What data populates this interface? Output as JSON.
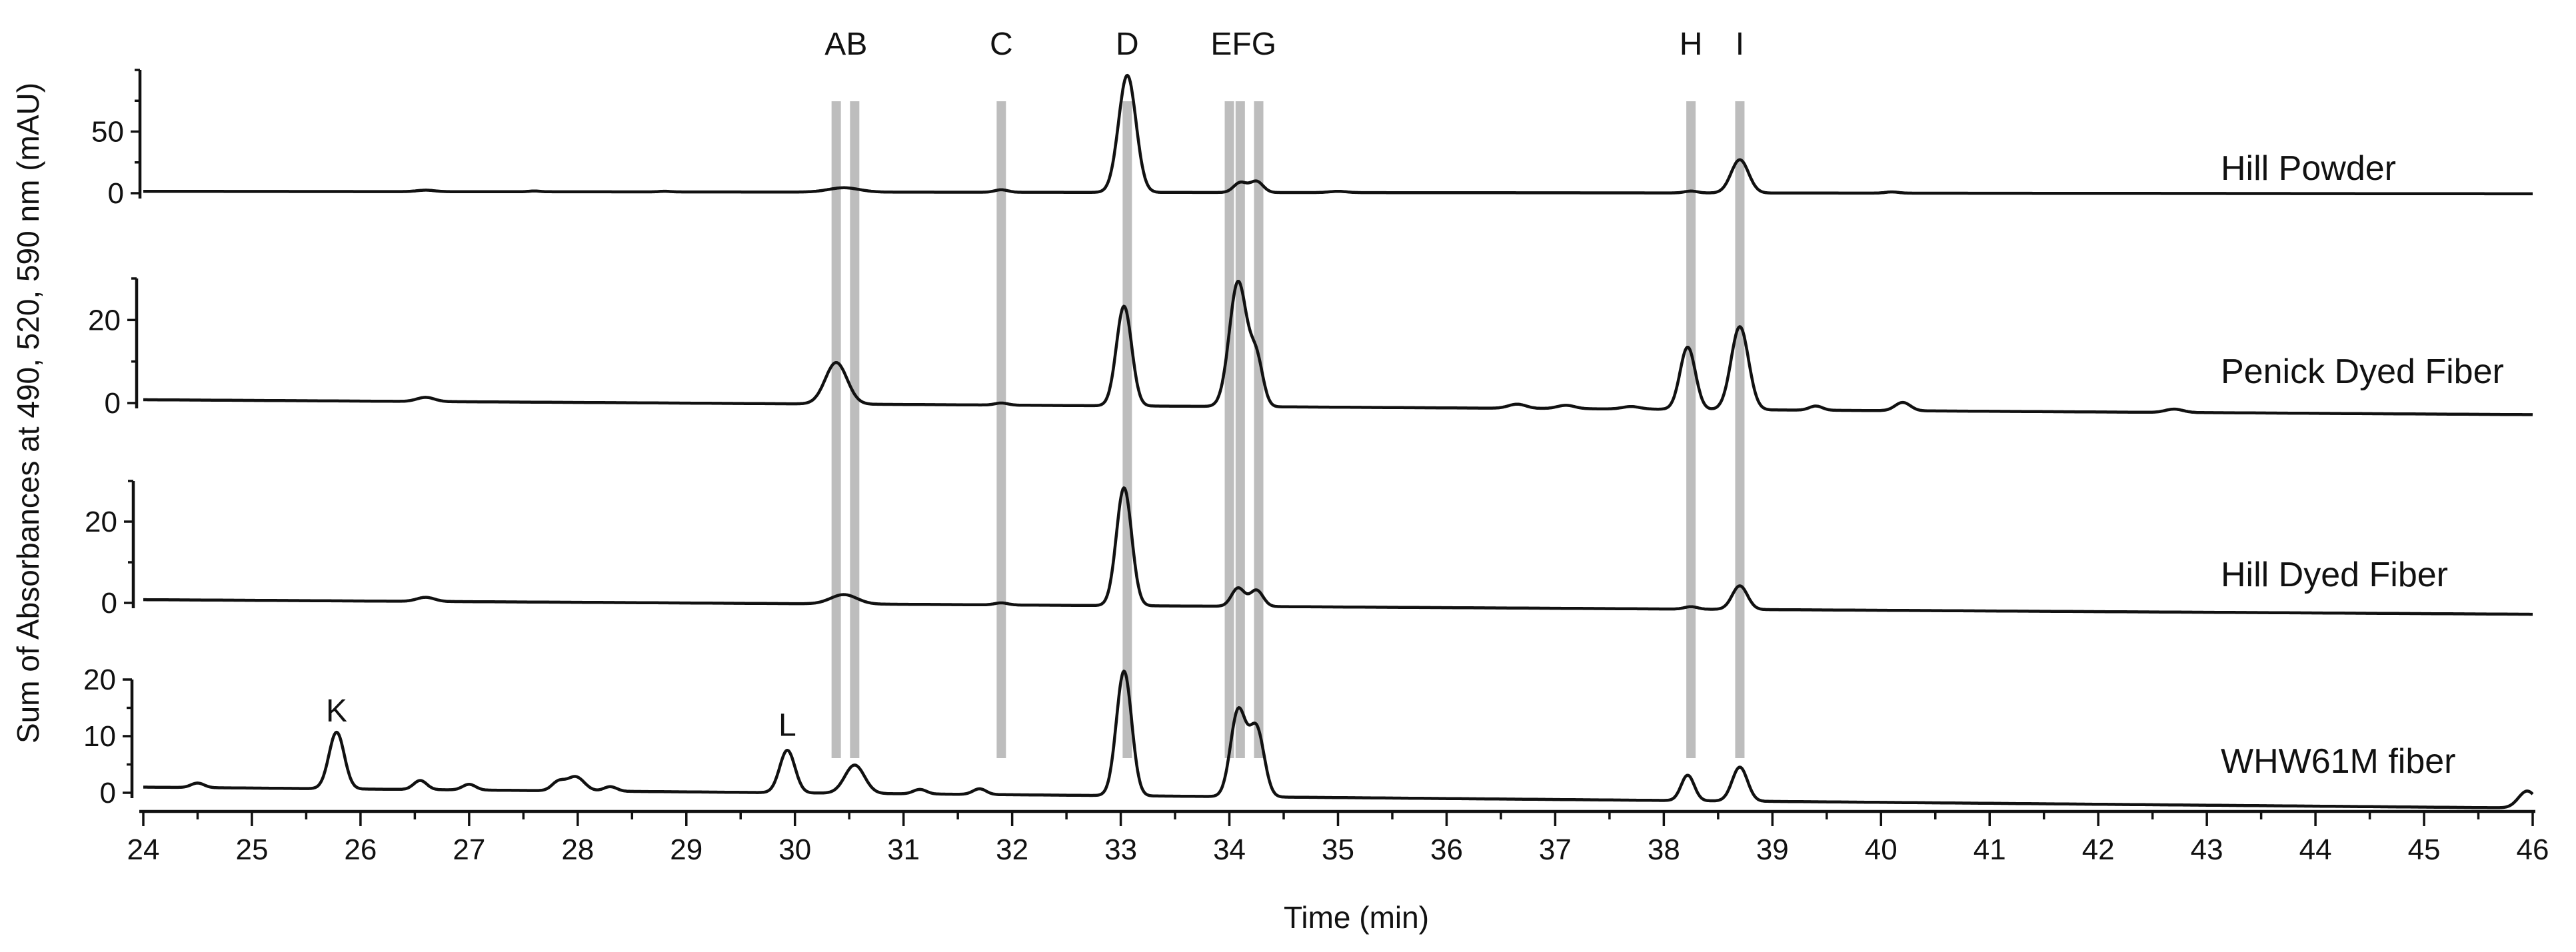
{
  "chart_data": {
    "type": "line",
    "xlabel": "Time (min)",
    "ylabel": "Sum of Absorbances at 490, 520, 590 nm (mAU)",
    "xlim": [
      24,
      46
    ],
    "x_ticks": [
      24,
      25,
      26,
      27,
      28,
      29,
      30,
      31,
      32,
      33,
      34,
      35,
      36,
      37,
      38,
      39,
      40,
      41,
      42,
      43,
      44,
      45,
      46
    ],
    "grid": false,
    "peak_markers": [
      {
        "label": "A",
        "time": 30.38
      },
      {
        "label": "B",
        "time": 30.55
      },
      {
        "label": "C",
        "time": 31.9
      },
      {
        "label": "D",
        "time": 33.06
      },
      {
        "label": "E",
        "time": 34.0
      },
      {
        "label": "F",
        "time": 34.1
      },
      {
        "label": "G",
        "time": 34.27
      },
      {
        "label": "H",
        "time": 38.25
      },
      {
        "label": "I",
        "time": 38.7
      }
    ],
    "marker_labels": [
      {
        "text": "AB",
        "time": 30.47
      },
      {
        "text": "C",
        "time": 31.9
      },
      {
        "text": "D",
        "time": 33.06
      },
      {
        "text": "EFG",
        "time": 34.13
      },
      {
        "text": "H",
        "time": 38.25
      },
      {
        "text": "I",
        "time": 38.7
      }
    ],
    "series": [
      {
        "name": "Hill Powder",
        "ylim": [
          0,
          100
        ],
        "y_ticks": [
          0,
          50
        ],
        "baseline": [
          [
            24,
            1.5
          ],
          [
            46,
            -0.5
          ]
        ],
        "peaks": [
          [
            26.6,
            1.2,
            0.08
          ],
          [
            27.6,
            0.6,
            0.05
          ],
          [
            28.8,
            0.5,
            0.05
          ],
          [
            30.45,
            3.5,
            0.14
          ],
          [
            31.9,
            2.0,
            0.06
          ],
          [
            33.06,
            95,
            0.08
          ],
          [
            34.1,
            8,
            0.06
          ],
          [
            34.25,
            9,
            0.06
          ],
          [
            35.0,
            1.0,
            0.08
          ],
          [
            38.25,
            1.5,
            0.06
          ],
          [
            38.7,
            27,
            0.08
          ],
          [
            40.1,
            1.0,
            0.06
          ]
        ]
      },
      {
        "name": "Penick Dyed Fiber",
        "ylim": [
          0,
          30
        ],
        "y_ticks": [
          0,
          20
        ],
        "baseline": [
          [
            24,
            0.8
          ],
          [
            46,
            -2.8
          ]
        ],
        "peaks": [
          [
            26.6,
            1.0,
            0.08
          ],
          [
            30.38,
            10,
            0.1
          ],
          [
            31.9,
            0.5,
            0.06
          ],
          [
            33.03,
            24,
            0.07
          ],
          [
            34.08,
            30,
            0.08
          ],
          [
            34.25,
            11,
            0.06
          ],
          [
            36.65,
            1.0,
            0.08
          ],
          [
            37.1,
            0.8,
            0.08
          ],
          [
            37.7,
            0.6,
            0.08
          ],
          [
            38.22,
            15,
            0.07
          ],
          [
            38.7,
            20,
            0.08
          ],
          [
            39.4,
            1.0,
            0.06
          ],
          [
            40.2,
            2.0,
            0.07
          ],
          [
            42.7,
            0.8,
            0.08
          ]
        ]
      },
      {
        "name": "Hill Dyed Fiber",
        "ylim": [
          0,
          30
        ],
        "y_ticks": [
          0,
          20
        ],
        "baseline": [
          [
            24,
            0.8
          ],
          [
            46,
            -2.8
          ]
        ],
        "peaks": [
          [
            26.6,
            1.0,
            0.08
          ],
          [
            30.45,
            2.3,
            0.12
          ],
          [
            31.9,
            0.5,
            0.06
          ],
          [
            33.03,
            29,
            0.07
          ],
          [
            34.08,
            4.5,
            0.06
          ],
          [
            34.25,
            4.0,
            0.06
          ],
          [
            38.25,
            0.6,
            0.06
          ],
          [
            38.7,
            5.8,
            0.07
          ]
        ]
      },
      {
        "name": "WHW61M fiber",
        "ylim": [
          0,
          20
        ],
        "y_ticks": [
          0,
          10,
          20
        ],
        "baseline": [
          [
            24,
            1.0
          ],
          [
            46,
            -2.7
          ]
        ],
        "peaks": [
          [
            24.5,
            0.8,
            0.06
          ],
          [
            25.78,
            10,
            0.07
          ],
          [
            26.55,
            1.6,
            0.06
          ],
          [
            27.0,
            1.0,
            0.06
          ],
          [
            27.82,
            1.5,
            0.06
          ],
          [
            27.98,
            2.5,
            0.08
          ],
          [
            28.3,
            0.8,
            0.06
          ],
          [
            29.93,
            7.5,
            0.07
          ],
          [
            30.55,
            5.0,
            0.09
          ],
          [
            31.15,
            0.8,
            0.06
          ],
          [
            31.7,
            1.0,
            0.06
          ],
          [
            33.03,
            22,
            0.07
          ],
          [
            34.08,
            15,
            0.07
          ],
          [
            34.25,
            12,
            0.07
          ],
          [
            38.22,
            4.5,
            0.06
          ],
          [
            38.7,
            6.0,
            0.07
          ],
          [
            45.95,
            3.0,
            0.08
          ]
        ]
      }
    ],
    "annotations": [
      {
        "text": "K",
        "time": 25.78,
        "series": "WHW61M fiber"
      },
      {
        "text": "L",
        "time": 29.93,
        "series": "WHW61M fiber"
      }
    ]
  }
}
